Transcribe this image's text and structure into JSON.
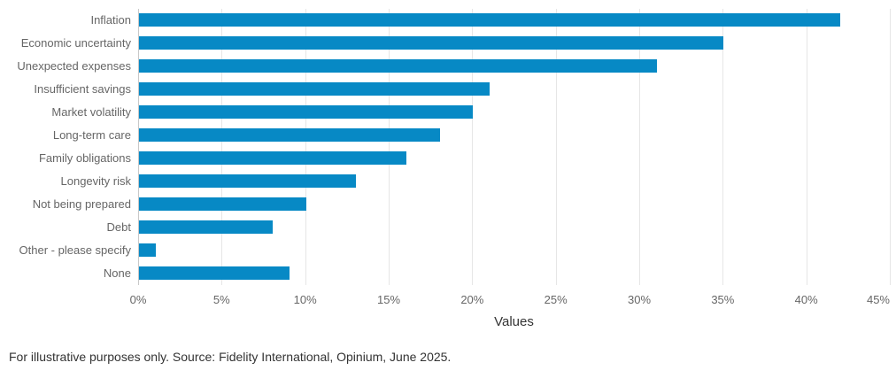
{
  "chart_data": {
    "type": "bar",
    "orientation": "horizontal",
    "categories": [
      "Inflation",
      "Economic uncertainty",
      "Unexpected expenses",
      "Insufficient savings",
      "Market volatility",
      "Long-term care",
      "Family obligations",
      "Longevity risk",
      "Not being prepared",
      "Debt",
      "Other - please specify",
      "None"
    ],
    "values": [
      42,
      35,
      31,
      21,
      20,
      18,
      16,
      13,
      10,
      8,
      1,
      9
    ],
    "xlabel": "Values",
    "ylabel": "",
    "xlim": [
      0,
      45
    ],
    "x_tick_step": 5,
    "x_tick_labels": [
      "0%",
      "5%",
      "10%",
      "15%",
      "20%",
      "25%",
      "30%",
      "35%",
      "40%",
      "45%"
    ],
    "grid": true,
    "legend": false,
    "bar_color": "#0789c5"
  },
  "footer": {
    "note": "For illustrative purposes only. Source: Fidelity International, Opinium, June 2025."
  },
  "colors": {
    "bar": "#0789c5",
    "gridline": "#e6e6e6",
    "axis_line": "#c8c8c8",
    "category_label": "#666666",
    "tick_label": "#666666",
    "axis_title": "#333333",
    "footer": "#333333",
    "background": "#ffffff"
  }
}
